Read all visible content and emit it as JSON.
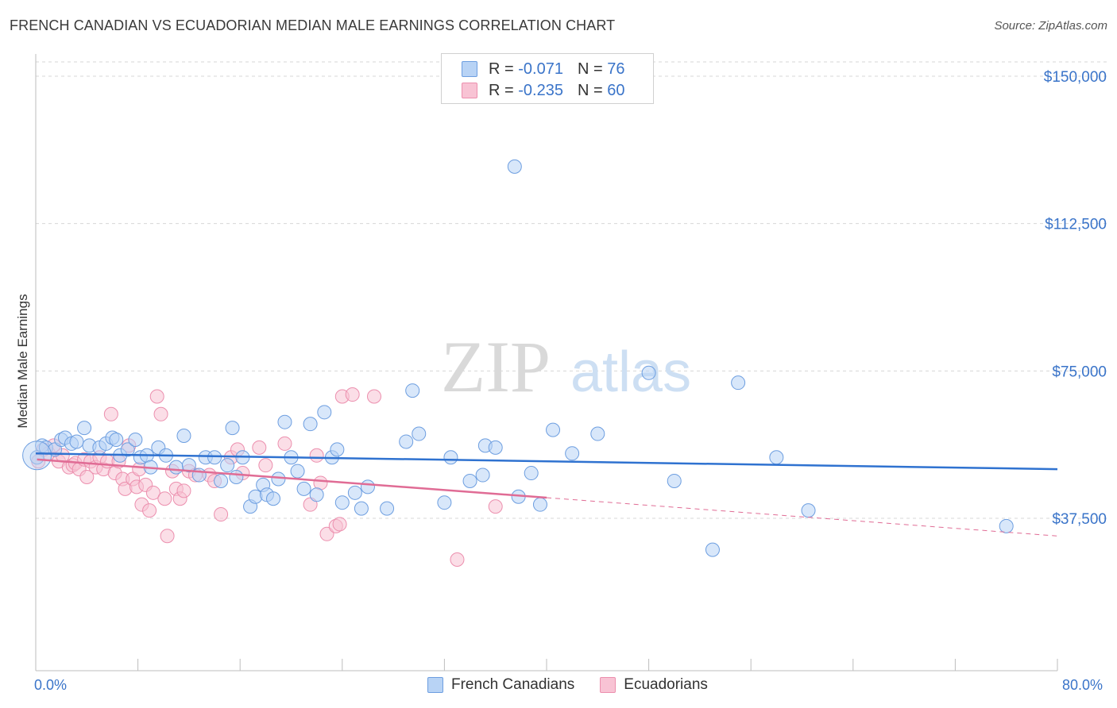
{
  "header": {
    "title": "FRENCH CANADIAN VS ECUADORIAN MEDIAN MALE EARNINGS CORRELATION CHART",
    "source": "Source: ZipAtlas.com"
  },
  "legend": {
    "rows": [
      {
        "r_label": "R =",
        "r_value": "-0.071",
        "n_label": "N =",
        "n_value": "76"
      },
      {
        "r_label": "R =",
        "r_value": "-0.235",
        "n_label": "N =",
        "n_value": "60"
      }
    ]
  },
  "bottom_legend": {
    "french": "French Canadians",
    "ecuador": "Ecuadorians"
  },
  "x_axis": {
    "min_label": "0.0%",
    "max_label": "80.0%"
  },
  "watermark": {
    "zip": "ZIP",
    "atlas": "atlas"
  },
  "colors": {
    "french_fill": "#b8d3f5",
    "french_stroke": "#6d9ee0",
    "french_line": "#2f72d0",
    "ecuador_fill": "#f8c3d4",
    "ecuador_stroke": "#ec8fae",
    "ecuador_line": "#e06c95",
    "axis_text": "#3a74c9",
    "grid": "#d7d7d7"
  },
  "chart_data": {
    "type": "scatter",
    "title": "FRENCH CANADIAN VS ECUADORIAN MEDIAN MALE EARNINGS CORRELATION CHART",
    "xlabel": "",
    "ylabel": "Median Male Earnings",
    "xlim": [
      0,
      80
    ],
    "ylim": [
      0,
      155000
    ],
    "y_ticks": [
      37500,
      75000,
      112500,
      150000
    ],
    "y_tick_labels": [
      "$37,500",
      "$75,000",
      "$112,500",
      "$150,000"
    ],
    "x_tick_labels": [
      "0.0%",
      "80.0%"
    ],
    "grid": true,
    "legend_position": "top-center",
    "series": [
      {
        "name": "French Canadians",
        "r": -0.071,
        "n": 76,
        "trend": {
          "x": [
            0,
            80
          ],
          "y": [
            54000,
            50000
          ],
          "solid_until": 80
        },
        "points": [
          [
            0.1,
            53000
          ],
          [
            0.5,
            56000
          ],
          [
            0.8,
            55500
          ],
          [
            1.5,
            55000
          ],
          [
            2,
            57500
          ],
          [
            2.3,
            58000
          ],
          [
            2.8,
            56500
          ],
          [
            3.2,
            57000
          ],
          [
            3.8,
            60500
          ],
          [
            4.2,
            56000
          ],
          [
            5,
            55500
          ],
          [
            5.5,
            56500
          ],
          [
            6,
            58000
          ],
          [
            6.3,
            57500
          ],
          [
            6.6,
            53500
          ],
          [
            7.2,
            55000
          ],
          [
            7.8,
            57500
          ],
          [
            8.2,
            53000
          ],
          [
            8.7,
            53500
          ],
          [
            9,
            50500
          ],
          [
            9.6,
            55500
          ],
          [
            10.2,
            53500
          ],
          [
            11,
            50500
          ],
          [
            11.6,
            58500
          ],
          [
            12,
            51000
          ],
          [
            12.8,
            48500
          ],
          [
            13.3,
            53000
          ],
          [
            14,
            53000
          ],
          [
            14.5,
            47000
          ],
          [
            15,
            51000
          ],
          [
            15.4,
            60500
          ],
          [
            15.7,
            48000
          ],
          [
            16.2,
            53000
          ],
          [
            16.8,
            40500
          ],
          [
            17.2,
            43000
          ],
          [
            17.8,
            46000
          ],
          [
            18.1,
            43500
          ],
          [
            18.6,
            42500
          ],
          [
            19,
            47500
          ],
          [
            19.5,
            62000
          ],
          [
            20,
            53000
          ],
          [
            20.5,
            49500
          ],
          [
            21,
            45000
          ],
          [
            21.5,
            61500
          ],
          [
            22,
            43500
          ],
          [
            22.6,
            64500
          ],
          [
            23.2,
            53000
          ],
          [
            23.6,
            55000
          ],
          [
            24,
            41500
          ],
          [
            25,
            44000
          ],
          [
            25.5,
            40000
          ],
          [
            26,
            45500
          ],
          [
            27.5,
            40000
          ],
          [
            29,
            57000
          ],
          [
            29.5,
            70000
          ],
          [
            30,
            59000
          ],
          [
            32,
            41500
          ],
          [
            32.5,
            53000
          ],
          [
            34,
            47000
          ],
          [
            35,
            48500
          ],
          [
            35.2,
            56000
          ],
          [
            36,
            55500
          ],
          [
            37.5,
            127000
          ],
          [
            37.8,
            43000
          ],
          [
            38.8,
            49000
          ],
          [
            39.5,
            41000
          ],
          [
            40.5,
            60000
          ],
          [
            42,
            54000
          ],
          [
            44,
            59000
          ],
          [
            48,
            74500
          ],
          [
            50,
            47000
          ],
          [
            53,
            29500
          ],
          [
            55,
            72000
          ],
          [
            58,
            53000
          ],
          [
            60.5,
            39500
          ],
          [
            76,
            35500
          ]
        ]
      },
      {
        "name": "Ecuadorians",
        "r": -0.235,
        "n": 60,
        "trend": {
          "x": [
            0,
            80
          ],
          "y": [
            52500,
            33000
          ],
          "solid_until": 40
        },
        "points": [
          [
            0.2,
            52000
          ],
          [
            0.6,
            55000
          ],
          [
            1,
            54000
          ],
          [
            1.4,
            56000
          ],
          [
            1.8,
            52000
          ],
          [
            2.1,
            53500
          ],
          [
            2.6,
            50500
          ],
          [
            2.9,
            51000
          ],
          [
            3.1,
            51500
          ],
          [
            3.4,
            50000
          ],
          [
            3.8,
            52500
          ],
          [
            4,
            48000
          ],
          [
            4.3,
            52000
          ],
          [
            4.7,
            50500
          ],
          [
            5,
            53000
          ],
          [
            5.3,
            50000
          ],
          [
            5.6,
            52000
          ],
          [
            5.9,
            64000
          ],
          [
            6.2,
            49000
          ],
          [
            6.5,
            52000
          ],
          [
            6.8,
            47500
          ],
          [
            7,
            45000
          ],
          [
            7.3,
            56000
          ],
          [
            7.6,
            47500
          ],
          [
            7.9,
            45500
          ],
          [
            8.1,
            50000
          ],
          [
            8.3,
            41000
          ],
          [
            8.6,
            46000
          ],
          [
            8.9,
            39500
          ],
          [
            9.2,
            44000
          ],
          [
            9.5,
            68500
          ],
          [
            9.8,
            64000
          ],
          [
            10.1,
            42500
          ],
          [
            10.3,
            33000
          ],
          [
            10.7,
            49500
          ],
          [
            11,
            45000
          ],
          [
            11.3,
            42500
          ],
          [
            11.6,
            44500
          ],
          [
            12,
            49500
          ],
          [
            12.5,
            48500
          ],
          [
            13.6,
            48500
          ],
          [
            14,
            47000
          ],
          [
            14.5,
            38500
          ],
          [
            15.3,
            53000
          ],
          [
            15.8,
            55000
          ],
          [
            16.2,
            49000
          ],
          [
            17.5,
            55500
          ],
          [
            18,
            51000
          ],
          [
            19.5,
            56500
          ],
          [
            21.5,
            41000
          ],
          [
            22,
            53500
          ],
          [
            22.3,
            46500
          ],
          [
            22.8,
            33500
          ],
          [
            23.5,
            35500
          ],
          [
            23.8,
            36000
          ],
          [
            24,
            68500
          ],
          [
            24.8,
            69000
          ],
          [
            26.5,
            68500
          ],
          [
            33,
            27000
          ],
          [
            36,
            40500
          ]
        ]
      }
    ]
  }
}
